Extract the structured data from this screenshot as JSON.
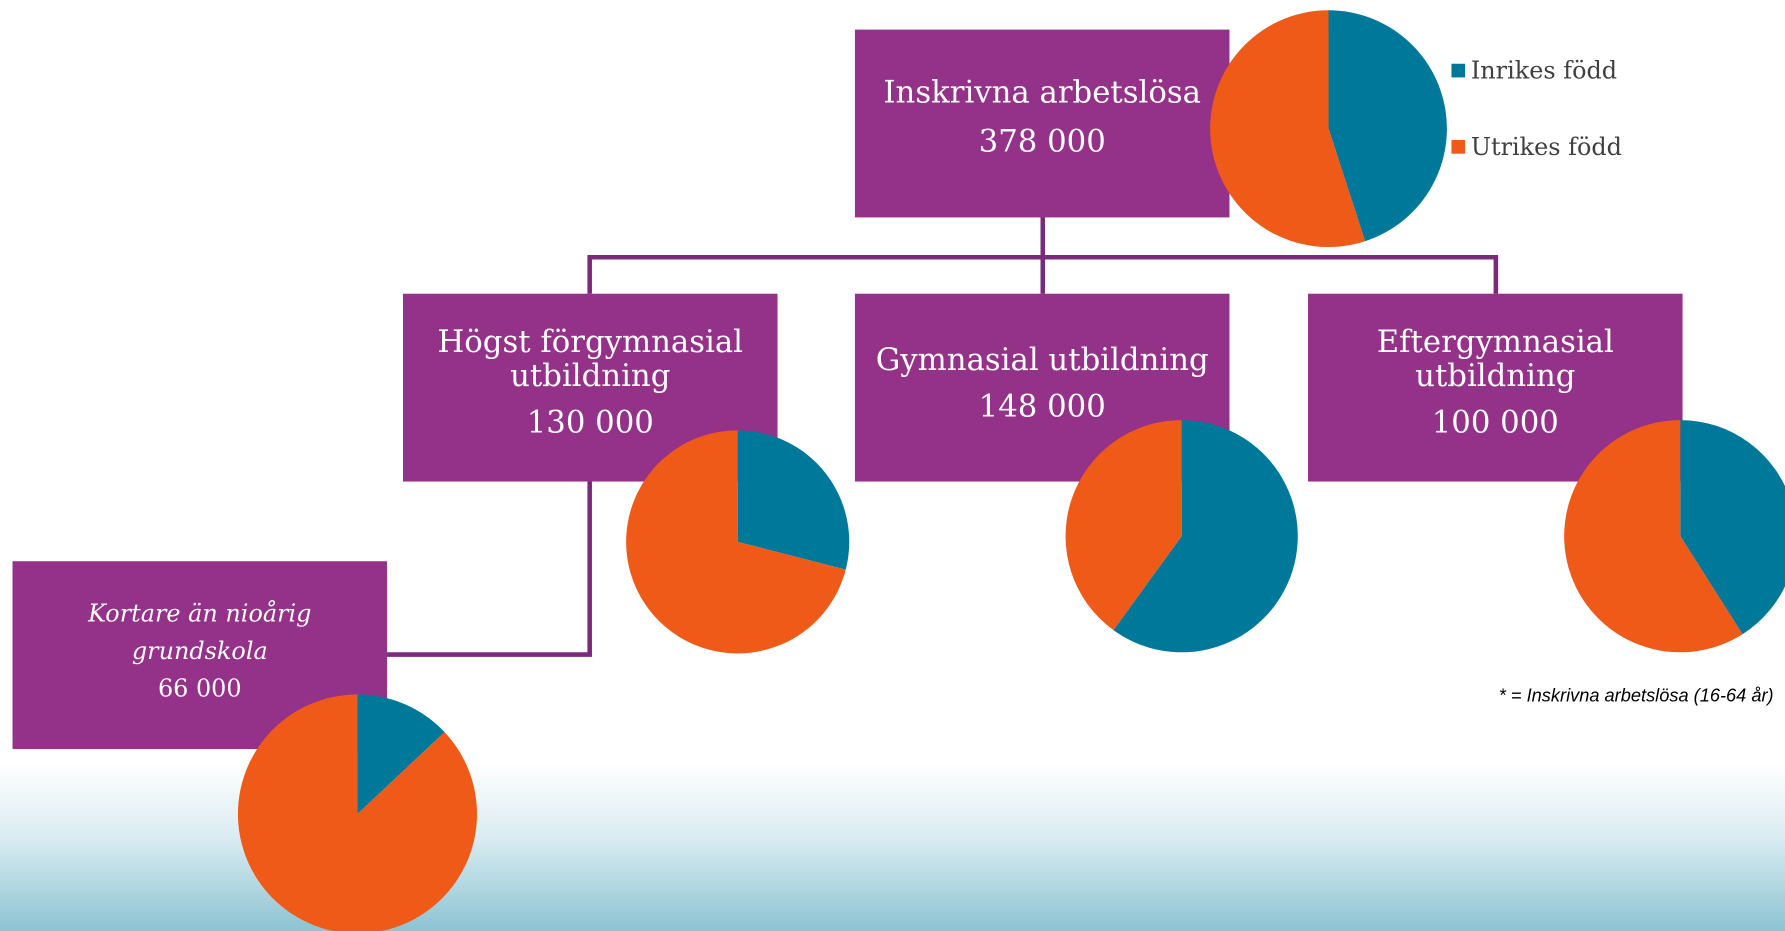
{
  "legend": [
    {
      "label": "Inrikes född",
      "color": "#00789a"
    },
    {
      "label": "Utrikes född",
      "color": "#f05a19"
    }
  ],
  "nodes": [
    {
      "label": "Inskrivna arbetslösa",
      "value": "378 000",
      "shares": [
        45,
        55
      ]
    },
    {
      "label": "Högst förgymnasial utbildning",
      "value": "130 000",
      "shares": [
        29,
        71
      ]
    },
    {
      "label": "Gymnasial utbildning",
      "value": "148 000",
      "shares": [
        60,
        40
      ]
    },
    {
      "label": "Eftergymnasial utbildning",
      "value": "100 000",
      "shares": [
        41,
        59
      ]
    },
    {
      "label": "Kortare än nioårig grundskola",
      "value": "66 000",
      "shares": [
        13,
        87
      ]
    }
  ],
  "footnote": "* = Inskrivna arbetslösa (16-64 år)"
}
